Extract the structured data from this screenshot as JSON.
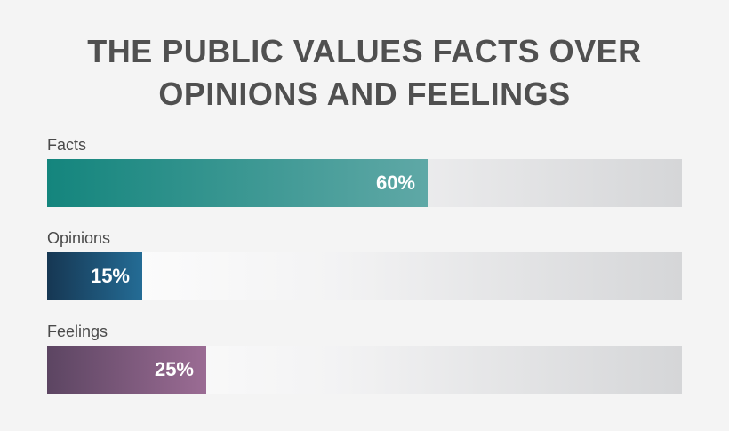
{
  "title_lines": [
    "THE PUBLIC VALUES FACTS OVER",
    "OPINIONS AND FEELINGS"
  ],
  "chart_data": {
    "type": "bar",
    "orientation": "horizontal",
    "title": "THE PUBLIC VALUES FACTS OVER OPINIONS AND FEELINGS",
    "categories": [
      "Facts",
      "Opinions",
      "Feelings"
    ],
    "values": [
      60,
      15,
      25
    ],
    "value_labels": [
      "60%",
      "15%",
      "25%"
    ],
    "xlim": [
      0,
      100
    ],
    "grid": false,
    "legend": "none",
    "colors": [
      {
        "start": "#14857d",
        "end": "#5fa8a6"
      },
      {
        "start": "#163753",
        "end": "#246c95"
      },
      {
        "start": "#5c4562",
        "end": "#9b6c94"
      }
    ]
  }
}
